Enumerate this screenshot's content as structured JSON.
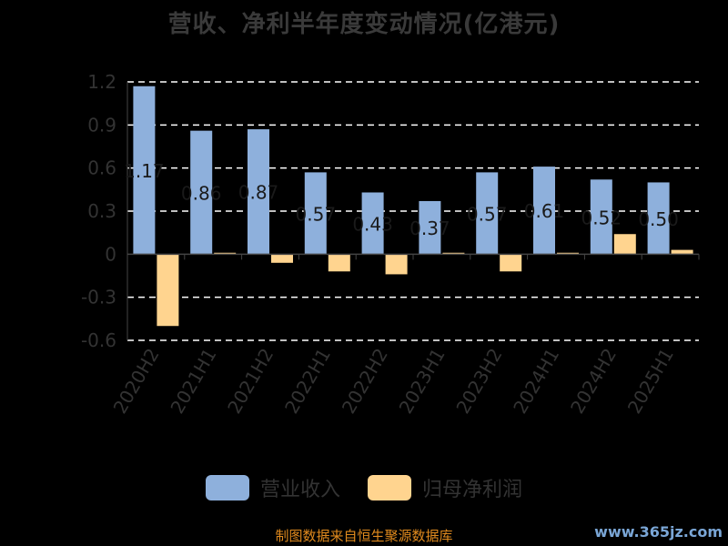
{
  "chart_data": {
    "type": "bar",
    "title": "营收、净利半年度变动情况(亿港元)",
    "categories": [
      "2020H2",
      "2021H1",
      "2021H2",
      "2022H1",
      "2022H2",
      "2023H1",
      "2023H2",
      "2024H1",
      "2024H2",
      "2025H1"
    ],
    "ylim": [
      -0.6,
      1.2
    ],
    "yticks": [
      "1.2",
      "0.9",
      "0.6",
      "0.3",
      "0",
      "-0.3",
      "-0.6"
    ],
    "ytick_values": [
      1.2,
      0.9,
      0.6,
      0.3,
      0,
      -0.3,
      -0.6
    ],
    "grid": true,
    "legend_position": "bottom",
    "series": [
      {
        "name": "营业收入",
        "color": "#8eb0dc",
        "values": [
          1.17,
          0.86,
          0.87,
          0.57,
          0.43,
          0.37,
          0.57,
          0.61,
          0.52,
          0.5
        ],
        "labels": [
          "1.17",
          "0.86",
          "0.87",
          "0.57",
          "0.43",
          "0.37",
          "0.57",
          "0.61",
          "0.52",
          "0.50"
        ]
      },
      {
        "name": "归母净利润",
        "color": "#ffd48f",
        "values": [
          -0.5,
          0.01,
          -0.06,
          -0.12,
          -0.14,
          0.01,
          -0.12,
          0.01,
          0.14,
          0.03
        ]
      }
    ]
  },
  "footer": {
    "source": "制图数据来自恒生聚源数据库",
    "watermark": "www.365jz.com"
  }
}
